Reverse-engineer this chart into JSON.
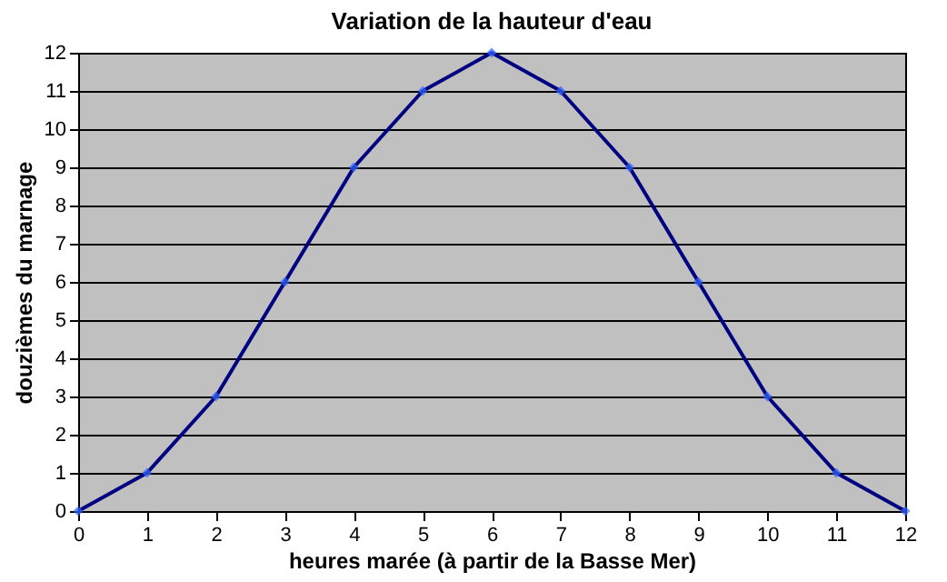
{
  "chart_data": {
    "type": "line",
    "title": "Variation de la hauteur d'eau",
    "xlabel": "heures marée (à partir de la Basse Mer)",
    "ylabel": "douzièmes du marnage",
    "x": [
      0,
      1,
      2,
      3,
      4,
      5,
      6,
      7,
      8,
      9,
      10,
      11,
      12
    ],
    "series": [
      {
        "color": "#000080",
        "values": [
          0,
          1,
          3,
          6,
          9,
          11,
          12,
          11,
          9,
          6,
          3,
          1,
          0
        ]
      }
    ],
    "xlim": [
      0,
      12
    ],
    "xticks": [
      0,
      1,
      2,
      3,
      4,
      5,
      6,
      7,
      8,
      9,
      10,
      11,
      12
    ],
    "ylim": [
      0,
      12
    ],
    "yticks": [
      0,
      1,
      2,
      3,
      4,
      5,
      6,
      7,
      8,
      9,
      10,
      11,
      12
    ],
    "grid": "y",
    "marker": "diamond",
    "line_style": "solid",
    "legend": false
  }
}
